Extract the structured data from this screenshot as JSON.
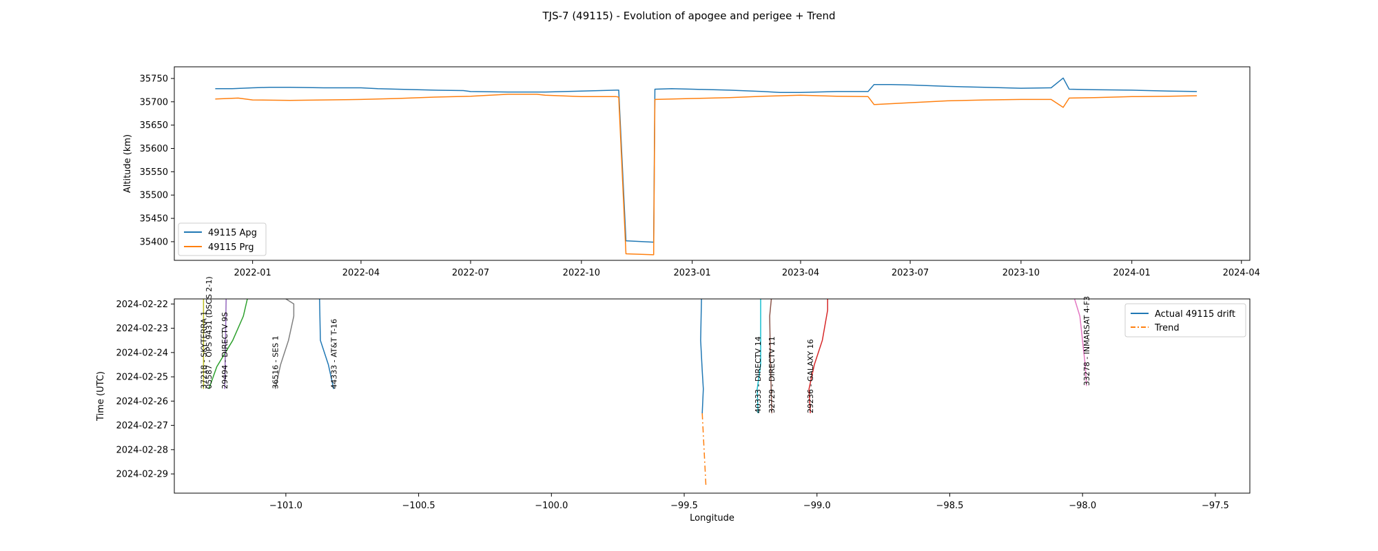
{
  "figure_title": "TJS-7 (49115) - Evolution of apogee and perigee + Trend",
  "colors": {
    "apg": "#1f77b4",
    "prg": "#ff7f0e",
    "trend": "#ff7f0e",
    "green": "#2ca02c",
    "red": "#d62728",
    "purple": "#9467bd",
    "brown": "#8c564b",
    "pink": "#e377c2",
    "gray": "#7f7f7f",
    "olive": "#bcbd22",
    "cyan": "#17becf"
  },
  "chart_data": [
    {
      "type": "line",
      "title": "",
      "xlabel": "",
      "ylabel": "Altitude (km)",
      "x_axis_type": "date",
      "xlim": [
        "2021-10-28",
        "2024-04-08"
      ],
      "ylim": [
        35360,
        35775
      ],
      "xticks": [
        "2022-01",
        "2022-04",
        "2022-07",
        "2022-10",
        "2023-01",
        "2023-04",
        "2023-07",
        "2023-10",
        "2024-01",
        "2024-04"
      ],
      "yticks": [
        35400,
        35450,
        35500,
        35550,
        35600,
        35650,
        35700,
        35750
      ],
      "legend": {
        "placement": "lower-left",
        "entries": [
          "49115 Apg",
          "49115 Prg"
        ]
      },
      "grid": false,
      "series": [
        {
          "name": "49115 Apg",
          "color": "#1f77b4",
          "points": [
            [
              "2021-12-01",
              35728
            ],
            [
              "2021-12-15",
              35728
            ],
            [
              "2022-01-01",
              35730
            ],
            [
              "2022-01-15",
              35731
            ],
            [
              "2022-02-01",
              35731
            ],
            [
              "2022-03-01",
              35730
            ],
            [
              "2022-04-01",
              35730
            ],
            [
              "2022-04-15",
              35728
            ],
            [
              "2022-05-01",
              35727
            ],
            [
              "2022-06-01",
              35725
            ],
            [
              "2022-06-25",
              35724
            ],
            [
              "2022-07-01",
              35722
            ],
            [
              "2022-08-01",
              35721
            ],
            [
              "2022-09-01",
              35721
            ],
            [
              "2022-10-01",
              35723
            ],
            [
              "2022-10-30",
              35725
            ],
            [
              "2022-11-01",
              35725
            ],
            [
              "2022-11-07",
              35402
            ],
            [
              "2022-11-30",
              35399
            ],
            [
              "2022-12-01",
              35727
            ],
            [
              "2022-12-15",
              35728
            ],
            [
              "2023-01-01",
              35727
            ],
            [
              "2023-02-01",
              35725
            ],
            [
              "2023-03-01",
              35722
            ],
            [
              "2023-03-15",
              35720
            ],
            [
              "2023-04-01",
              35720
            ],
            [
              "2023-05-01",
              35722
            ],
            [
              "2023-05-27",
              35722
            ],
            [
              "2023-06-01",
              35737
            ],
            [
              "2023-06-15",
              35737
            ],
            [
              "2023-07-01",
              35736
            ],
            [
              "2023-08-01",
              35733
            ],
            [
              "2023-09-01",
              35731
            ],
            [
              "2023-10-01",
              35729
            ],
            [
              "2023-10-26",
              35730
            ],
            [
              "2023-11-05",
              35751
            ],
            [
              "2023-11-10",
              35727
            ],
            [
              "2023-12-01",
              35726
            ],
            [
              "2024-01-01",
              35725
            ],
            [
              "2024-02-01",
              35723
            ],
            [
              "2024-02-24",
              35722
            ]
          ]
        },
        {
          "name": "49115 Prg",
          "color": "#ff7f0e",
          "points": [
            [
              "2021-12-01",
              35706
            ],
            [
              "2021-12-20",
              35708
            ],
            [
              "2022-01-01",
              35704
            ],
            [
              "2022-02-01",
              35703
            ],
            [
              "2022-03-01",
              35704
            ],
            [
              "2022-04-01",
              35705
            ],
            [
              "2022-05-01",
              35707
            ],
            [
              "2022-06-01",
              35710
            ],
            [
              "2022-07-01",
              35712
            ],
            [
              "2022-08-01",
              35716
            ],
            [
              "2022-08-25",
              35716
            ],
            [
              "2022-09-01",
              35714
            ],
            [
              "2022-10-01",
              35711
            ],
            [
              "2022-10-30",
              35711
            ],
            [
              "2022-11-01",
              35710
            ],
            [
              "2022-11-07",
              35374
            ],
            [
              "2022-11-30",
              35372
            ],
            [
              "2022-12-01",
              35705
            ],
            [
              "2023-01-01",
              35707
            ],
            [
              "2023-02-01",
              35709
            ],
            [
              "2023-03-01",
              35712
            ],
            [
              "2023-04-01",
              35714
            ],
            [
              "2023-05-01",
              35712
            ],
            [
              "2023-05-27",
              35711
            ],
            [
              "2023-06-01",
              35694
            ],
            [
              "2023-07-01",
              35698
            ],
            [
              "2023-08-01",
              35702
            ],
            [
              "2023-09-01",
              35704
            ],
            [
              "2023-10-01",
              35705
            ],
            [
              "2023-10-26",
              35705
            ],
            [
              "2023-11-05",
              35688
            ],
            [
              "2023-11-10",
              35708
            ],
            [
              "2023-12-01",
              35709
            ],
            [
              "2024-01-01",
              35711
            ],
            [
              "2024-02-01",
              35712
            ],
            [
              "2024-02-24",
              35713
            ]
          ]
        }
      ]
    },
    {
      "type": "line",
      "title": "",
      "xlabel": "Longitude",
      "ylabel": "Time (UTC)",
      "y_axis_type": "date",
      "y_inverted": true,
      "xlim": [
        -101.42,
        -97.37
      ],
      "ylim": [
        "2024-02-21T19:00",
        "2024-02-29T19:00"
      ],
      "xticks": [
        -101.0,
        -100.5,
        -100.0,
        -99.5,
        -99.0,
        -98.5,
        -98.0,
        -97.5
      ],
      "xtick_labels": [
        "−101.0",
        "−100.5",
        "−100.0",
        "−99.5",
        "−99.0",
        "−98.5",
        "−98.0",
        "−97.5"
      ],
      "yticks": [
        "2024-02-22",
        "2024-02-23",
        "2024-02-24",
        "2024-02-25",
        "2024-02-26",
        "2024-02-27",
        "2024-02-28",
        "2024-02-29"
      ],
      "legend": {
        "placement": "top-right",
        "entries": [
          "Actual 49115 drift",
          "Trend"
        ]
      },
      "grid": false,
      "series": [
        {
          "name": "Actual 49115 drift",
          "color": "#1f77b4",
          "style": "solid",
          "points": [
            [
              -99.435,
              "2024-02-21T19:00"
            ],
            [
              -99.438,
              "2024-02-23T12:00"
            ],
            [
              -99.432,
              "2024-02-24T18:00"
            ],
            [
              -99.428,
              "2024-02-25T12:00"
            ],
            [
              -99.432,
              "2024-02-26T12:00"
            ]
          ]
        },
        {
          "name": "Trend",
          "color": "#ff7f0e",
          "style": "dashdot",
          "points": [
            [
              -99.432,
              "2024-02-26T12:00"
            ],
            [
              -99.418,
              "2024-02-29T12:00"
            ]
          ]
        },
        {
          "label": "37218 - SKYTERRA 1",
          "color": "#bcbd22",
          "style": "solid",
          "points": [
            [
              -101.31,
              "2024-02-21T19:00"
            ],
            [
              -101.31,
              "2024-02-25T12:00"
            ]
          ]
        },
        {
          "label": "05587 - OPS 9431 (DSCS 2-1)",
          "color": "#2ca02c",
          "style": "solid",
          "points": [
            [
              -101.145,
              "2024-02-21T19:00"
            ],
            [
              -101.16,
              "2024-02-22T12:00"
            ],
            [
              -101.2,
              "2024-02-23T12:00"
            ],
            [
              -101.26,
              "2024-02-24T14:00"
            ],
            [
              -101.29,
              "2024-02-25T12:00"
            ]
          ]
        },
        {
          "label": "29494 - DIRECTV 9S",
          "color": "#9467bd",
          "style": "solid",
          "points": [
            [
              -101.225,
              "2024-02-21T19:00"
            ],
            [
              -101.23,
              "2024-02-25T12:00"
            ]
          ]
        },
        {
          "label": "36516 - SES 1",
          "color": "#7f7f7f",
          "style": "solid",
          "points": [
            [
              -101.0,
              "2024-02-21T19:00"
            ],
            [
              -100.97,
              "2024-02-22T00:00"
            ],
            [
              -100.97,
              "2024-02-22T12:00"
            ],
            [
              -100.99,
              "2024-02-23T12:00"
            ],
            [
              -101.02,
              "2024-02-24T12:00"
            ],
            [
              -101.04,
              "2024-02-25T12:00"
            ]
          ]
        },
        {
          "label": "44333 - AT&T T-16",
          "color": "#1f77b4",
          "style": "solid",
          "points": [
            [
              -100.873,
              "2024-02-21T19:00"
            ],
            [
              -100.87,
              "2024-02-23T12:00"
            ],
            [
              -100.84,
              "2024-02-24T12:00"
            ],
            [
              -100.82,
              "2024-02-25T12:00"
            ]
          ]
        },
        {
          "label": "40333 - DIRECTV 14",
          "color": "#17becf",
          "style": "solid",
          "points": [
            [
              -99.212,
              "2024-02-21T19:00"
            ],
            [
              -99.212,
              "2024-02-24T12:00"
            ],
            [
              -99.225,
              "2024-02-25T12:00"
            ],
            [
              -99.222,
              "2024-02-26T12:00"
            ]
          ]
        },
        {
          "label": "32729 - DIRECTV 11",
          "color": "#8c564b",
          "style": "solid",
          "points": [
            [
              -99.172,
              "2024-02-21T19:00"
            ],
            [
              -99.178,
              "2024-02-22T12:00"
            ],
            [
              -99.175,
              "2024-02-24T12:00"
            ],
            [
              -99.17,
              "2024-02-26T12:00"
            ]
          ]
        },
        {
          "label": "29236 - GALAXY 16",
          "color": "#d62728",
          "style": "solid",
          "points": [
            [
              -98.96,
              "2024-02-21T19:00"
            ],
            [
              -98.96,
              "2024-02-22T06:00"
            ],
            [
              -98.98,
              "2024-02-23T12:00"
            ],
            [
              -99.01,
              "2024-02-24T12:00"
            ],
            [
              -99.03,
              "2024-02-25T12:00"
            ],
            [
              -99.025,
              "2024-02-26T12:00"
            ]
          ]
        },
        {
          "label": "33278 - INMARSAT 4-F3",
          "color": "#e377c2",
          "style": "solid",
          "points": [
            [
              -98.03,
              "2024-02-21T19:00"
            ],
            [
              -98.01,
              "2024-02-22T12:00"
            ],
            [
              -97.99,
              "2024-02-24T12:00"
            ],
            [
              -97.985,
              "2024-02-25T09:00"
            ]
          ]
        }
      ]
    }
  ]
}
